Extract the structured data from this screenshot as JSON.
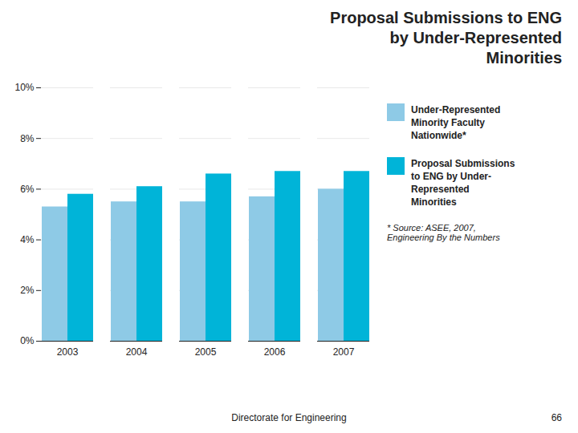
{
  "chart_data": {
    "type": "bar",
    "title": "Proposal Submissions to ENG\nby Under-Represented\nMinorities",
    "categories": [
      "2003",
      "2004",
      "2005",
      "2006",
      "2007"
    ],
    "series": [
      {
        "name": "Under-Represented\nMinority Faculty\nNationwide*",
        "color": "#8ecae6",
        "values": [
          5.3,
          5.5,
          5.5,
          5.7,
          6.0
        ]
      },
      {
        "name": "Proposal Submissions\nto ENG by Under-\nRepresented\nMinorities",
        "color": "#00b4d8",
        "values": [
          5.8,
          6.1,
          6.6,
          6.7,
          6.7
        ]
      }
    ],
    "ylim": [
      0,
      10
    ],
    "yticks": [
      {
        "value": 0,
        "label": "0%"
      },
      {
        "value": 2,
        "label": "2%"
      },
      {
        "value": 4,
        "label": "4%"
      },
      {
        "value": 6,
        "label": "6%"
      },
      {
        "value": 8,
        "label": "8%"
      },
      {
        "value": 10,
        "label": "10%"
      }
    ],
    "grid": true,
    "legend": "right",
    "annotations": [
      "* Source: ASEE, 2007,\nEngineering By the Numbers",
      "Directorate for Engineering",
      "66"
    ]
  }
}
